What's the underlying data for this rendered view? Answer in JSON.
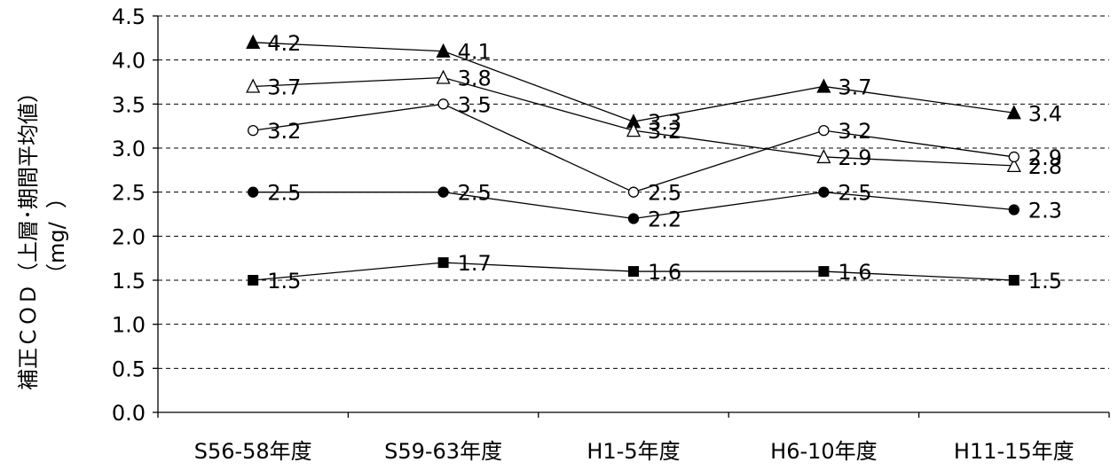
{
  "chart_data": {
    "type": "line",
    "categories": [
      "S56-58年度",
      "S59-63年度",
      "H1-5年度",
      "H6-10年度",
      "H11-15年度"
    ],
    "ylabel_line1": "補正ＣＯＤ（上層･期間平均値）",
    "ylabel_line2": "（mg/  ）",
    "ylim": [
      0,
      4.5
    ],
    "yticks": [
      "0.0",
      "0.5",
      "1.0",
      "1.5",
      "2.0",
      "2.5",
      "3.0",
      "3.5",
      "4.0",
      "4.5"
    ],
    "grid": "dashed horizontal",
    "series": [
      {
        "marker": "triangle-filled",
        "values": [
          4.2,
          4.1,
          3.3,
          3.7,
          3.4
        ],
        "labels": [
          "4.2",
          "4.1",
          "3.3",
          "3.7",
          "3.4"
        ]
      },
      {
        "marker": "triangle-open",
        "values": [
          3.7,
          3.8,
          3.2,
          2.9,
          2.8
        ],
        "labels": [
          "3.7",
          "3.8",
          "3.2",
          "2.9",
          "2.8"
        ]
      },
      {
        "marker": "circle-open",
        "values": [
          3.2,
          3.5,
          2.5,
          3.2,
          2.9
        ],
        "labels": [
          "3.2",
          "3.5",
          "2.5",
          "3.2",
          "2.9"
        ]
      },
      {
        "marker": "circle-filled",
        "values": [
          2.5,
          2.5,
          2.2,
          2.5,
          2.3
        ],
        "labels": [
          "2.5",
          "2.5",
          "2.2",
          "2.5",
          "2.3"
        ]
      },
      {
        "marker": "square-filled",
        "values": [
          1.5,
          1.7,
          1.6,
          1.6,
          1.5
        ],
        "labels": [
          "1.5",
          "1.7",
          "1.6",
          "1.6",
          "1.5"
        ]
      }
    ]
  }
}
